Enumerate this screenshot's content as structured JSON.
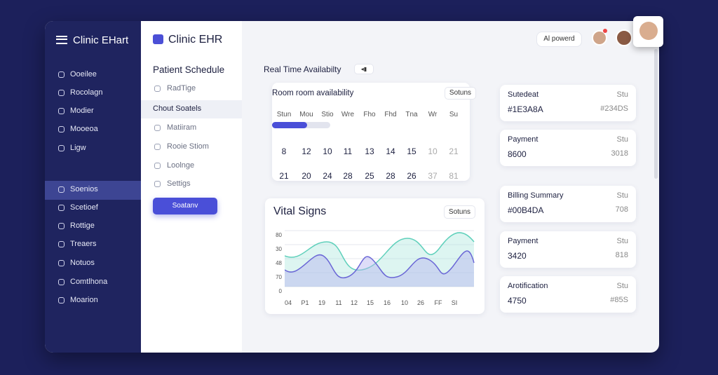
{
  "sidebar": {
    "title": "Clinic EHart",
    "items": [
      "Ooeilee",
      "Rocolagn",
      "Modier",
      "Mooeoa",
      "Ligw",
      "Soenios",
      "Scetioef",
      "Rottige",
      "Treaers",
      "Notuos",
      "Comtlhona",
      "Moarion"
    ]
  },
  "subnav": {
    "logo": "Clinic EHR",
    "heading": "Patient Schedule",
    "items": [
      "RadTige",
      "Chout Soatels",
      "Matiiram",
      "Rooie Stiom",
      "Loolnge",
      "Settigs"
    ],
    "button": "Soatanv"
  },
  "topbar": {
    "badge": "Al powerd"
  },
  "availability": {
    "heading": "Real Time Availabilty",
    "card_title": "Room room availability",
    "pill": "Sotuns",
    "days": [
      "Stun",
      "Mou",
      "Stio",
      "Wre",
      "Fho",
      "Fhd",
      "Tna",
      "Wr",
      "Su"
    ],
    "rows": [
      [
        "8",
        "12",
        "10",
        "11",
        "13",
        "14",
        "15",
        "10",
        "21"
      ],
      [
        "21",
        "20",
        "24",
        "28",
        "25",
        "28",
        "26",
        "37",
        "81"
      ]
    ]
  },
  "vitals": {
    "title": "Vital Signs",
    "pill": "Sotuns",
    "y_labels": [
      "80",
      "30",
      "48",
      "70",
      "0"
    ],
    "x_labels": [
      "04",
      "P1",
      "19",
      "11",
      "12",
      "15",
      "16",
      "10",
      "26",
      "FF",
      "SI"
    ]
  },
  "cards": [
    {
      "title": "Sutedeat",
      "tag": "Stu",
      "value": "#1E3A8A",
      "aside": "#234DS"
    },
    {
      "title": "Payment",
      "tag": "Stu",
      "value": "8600",
      "aside": "3018"
    },
    {
      "title": "Billing Summary",
      "tag": "Stu",
      "value": "#00B4DA",
      "aside": "708"
    },
    {
      "title": "Payment",
      "tag": "Stu",
      "value": "3420",
      "aside": "818"
    },
    {
      "title": "Arotification",
      "tag": "Stu",
      "value": "4750",
      "aside": "#85S"
    }
  ]
}
